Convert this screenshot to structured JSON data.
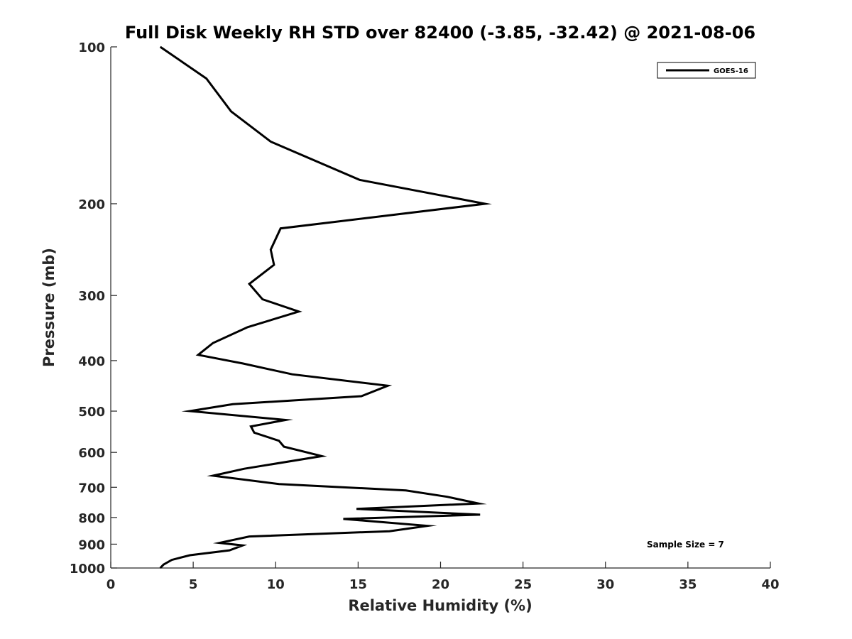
{
  "chart_data": {
    "type": "line",
    "title": "Full Disk Weekly RH STD over 82400 (-3.85, -32.42) @ 2021-08-06",
    "xlabel": "Relative Humidity (%)",
    "ylabel": "Pressure (mb)",
    "xlim": [
      0,
      40
    ],
    "ylim": [
      100,
      1000
    ],
    "yscale": "log",
    "y_reversed": true,
    "x_ticks": [
      "0",
      "5",
      "10",
      "15",
      "20",
      "25",
      "30",
      "35",
      "40"
    ],
    "y_ticks": [
      "100",
      "200",
      "300",
      "400",
      "500",
      "600",
      "700",
      "800",
      "900",
      "1000"
    ],
    "grid": false,
    "legend_position": "top-right",
    "series": [
      {
        "name": "GOES-16",
        "color": "#000000",
        "x": [
          3.0,
          5.8,
          7.3,
          9.7,
          15.1,
          22.7,
          10.3,
          9.7,
          9.9,
          8.4,
          9.2,
          11.4,
          8.3,
          6.2,
          5.3,
          8.0,
          11.0,
          16.8,
          15.2,
          7.4,
          4.8,
          10.6,
          8.5,
          8.7,
          10.2,
          10.5,
          12.8,
          8.1,
          6.2,
          10.2,
          17.9,
          20.4,
          22.3,
          14.9,
          22.4,
          14.1,
          19.2,
          16.9,
          8.4,
          6.6,
          8.0,
          7.2,
          4.8,
          3.7,
          3.2,
          3.0
        ],
        "y": [
          100,
          115,
          133,
          152,
          180,
          200,
          223,
          245,
          262,
          285,
          305,
          322,
          345,
          370,
          390,
          405,
          425,
          447,
          468,
          485,
          500,
          520,
          535,
          550,
          570,
          585,
          610,
          645,
          665,
          690,
          710,
          730,
          752,
          770,
          790,
          805,
          830,
          850,
          870,
          895,
          905,
          925,
          945,
          965,
          985,
          1000
        ]
      }
    ],
    "annotation": "Sample Size = 7"
  }
}
